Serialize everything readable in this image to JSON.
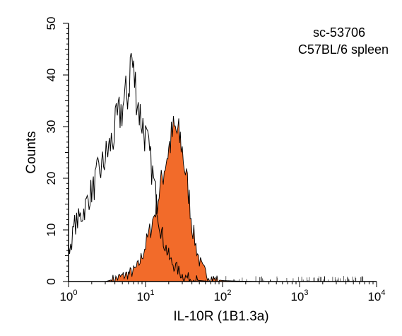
{
  "chart_data": {
    "type": "area",
    "title": "",
    "xlabel": "IL-10R (1B1.3a)",
    "ylabel": "Counts",
    "x_scale": "log",
    "xlim": [
      1,
      10000
    ],
    "ylim": [
      0,
      50
    ],
    "x_ticks": [
      {
        "value": 1,
        "base": "10",
        "exp": "0"
      },
      {
        "value": 10,
        "base": "10",
        "exp": "1"
      },
      {
        "value": 100,
        "base": "10",
        "exp": "2"
      },
      {
        "value": 1000,
        "base": "10",
        "exp": "3"
      },
      {
        "value": 10000,
        "base": "10",
        "exp": "4"
      }
    ],
    "y_ticks": [
      "0",
      "10",
      "20",
      "30",
      "40",
      "50"
    ],
    "grid": false,
    "annotations": [
      "sc-53706",
      "C57BL/6 spleen"
    ],
    "colors": {
      "filled": "#f26b2a",
      "outline": "#000000"
    },
    "series": [
      {
        "style": "outline",
        "x": [
          1.0,
          1.1,
          1.2,
          1.35,
          1.5,
          1.7,
          1.9,
          2.1,
          2.4,
          2.7,
          3.0,
          3.4,
          3.8,
          4.3,
          4.8,
          5.4,
          6.0,
          6.5,
          7.0,
          7.6,
          8.3,
          9.0,
          10.0,
          11.0,
          12.0,
          13.5,
          15.0,
          17.0,
          19.0,
          21.0,
          24.0,
          27.0,
          30.0,
          34.0,
          40.0,
          50.0,
          70.0
        ],
        "y": [
          6,
          8,
          11,
          12,
          13,
          15,
          17,
          18,
          21,
          22,
          24,
          26,
          28,
          31,
          33,
          35,
          37,
          44,
          40,
          37,
          33,
          31,
          28,
          25,
          22,
          17,
          12,
          8,
          6,
          4,
          3,
          2,
          1.2,
          0.8,
          0.5,
          0.2,
          0
        ]
      },
      {
        "style": "filled",
        "x": [
          3.0,
          4.0,
          5.0,
          6.0,
          7.0,
          8.0,
          9.0,
          10.0,
          11.0,
          12.0,
          13.5,
          15.0,
          16.5,
          18.0,
          19.5,
          21.0,
          23.0,
          25.0,
          27.0,
          29.0,
          31.0,
          34.0,
          37.0,
          40.0,
          45.0,
          50.0,
          55.0,
          62.0,
          70.0,
          80.0,
          100.0,
          150.0,
          300.0
        ],
        "y": [
          0,
          0.5,
          1,
          1.5,
          2,
          3,
          5,
          7,
          9,
          11,
          14,
          17,
          20,
          23,
          25,
          27,
          29,
          29,
          28,
          27,
          24,
          20,
          16,
          11,
          7,
          4,
          2.5,
          1.5,
          0.8,
          0.4,
          0.2,
          0.1,
          0
        ]
      }
    ]
  }
}
